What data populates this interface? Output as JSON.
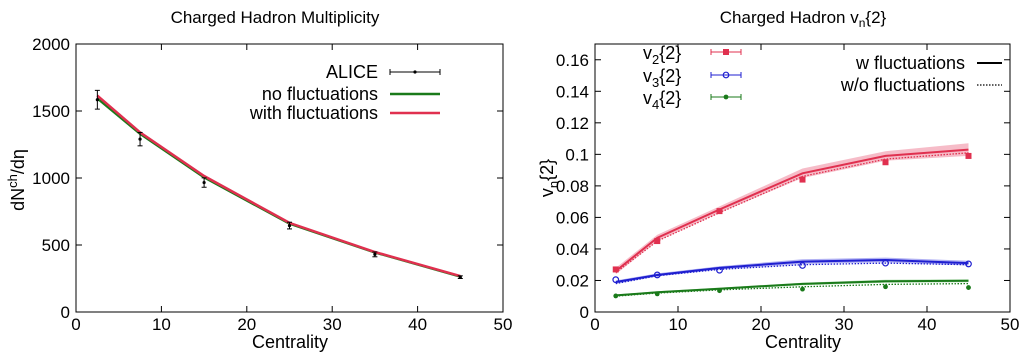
{
  "chart_data": [
    {
      "type": "line",
      "title": "Charged Hadron Multiplicity",
      "xlabel": "Centrality",
      "ylabel_base": "dN",
      "ylabel_sup": "ch",
      "ylabel_tail": "/dη",
      "xlim": [
        0,
        50
      ],
      "ylim": [
        0,
        2000
      ],
      "xticks": [
        0,
        10,
        20,
        30,
        40,
        50
      ],
      "yticks": [
        0,
        500,
        1000,
        1500,
        2000
      ],
      "legend_position": "top-right",
      "grid": false,
      "series": [
        {
          "name": "ALICE",
          "kind": "errorbar",
          "color": "#000000",
          "x": [
            2.5,
            7.5,
            15,
            25,
            35,
            45
          ],
          "y": [
            1584,
            1290,
            966,
            645,
            430,
            260
          ],
          "yerr": [
            70,
            50,
            35,
            25,
            18,
            10
          ]
        },
        {
          "name": "no fluctuations",
          "kind": "line",
          "color": "#1a7a1a",
          "x": [
            2.5,
            7.5,
            15,
            25,
            35,
            45
          ],
          "y": [
            1595,
            1330,
            1005,
            660,
            445,
            265
          ]
        },
        {
          "name": "with fluctuations",
          "kind": "line",
          "color": "#e0304f",
          "x": [
            2.5,
            7.5,
            15,
            25,
            35,
            45
          ],
          "y": [
            1615,
            1340,
            1015,
            665,
            448,
            268
          ]
        }
      ]
    },
    {
      "type": "line",
      "title_base": "Charged Hadron v",
      "title_sub": "n",
      "title_tail": "{2}",
      "xlabel": "Centrality",
      "ylabel_base": "v",
      "ylabel_sub": "n",
      "ylabel_tail": "{2}",
      "xlim": [
        0,
        50
      ],
      "ylim": [
        0,
        0.17
      ],
      "xticks": [
        0,
        10,
        20,
        30,
        40,
        50
      ],
      "yticks": [
        0,
        0.02,
        0.04,
        0.06,
        0.08,
        0.1,
        0.12,
        0.14,
        0.16
      ],
      "grid": false,
      "style_legend": [
        {
          "label": "w fluctuations",
          "dash": "solid"
        },
        {
          "label": "w/o fluctuations",
          "dash": "dotted"
        }
      ],
      "series": [
        {
          "name_base": "v",
          "name_sub": "2",
          "name_tail": "{2}",
          "color": "#e0304f",
          "band": "#f2a0b0",
          "marker": "square",
          "x": [
            2.5,
            7.5,
            15,
            25,
            35,
            45
          ],
          "y": [
            0.027,
            0.045,
            0.064,
            0.084,
            0.095,
            0.099
          ],
          "w_fluct": [
            0.026,
            0.047,
            0.065,
            0.088,
            0.099,
            0.103
          ],
          "wo_fluct": [
            0.025,
            0.045,
            0.063,
            0.086,
            0.097,
            0.101
          ],
          "band_width": [
            0.002,
            0.002,
            0.002,
            0.003,
            0.003,
            0.004
          ]
        },
        {
          "name_base": "v",
          "name_sub": "3",
          "name_tail": "{2}",
          "color": "#1f1fd0",
          "band": "#9090ee",
          "marker": "circle",
          "x": [
            2.5,
            7.5,
            15,
            25,
            35,
            45
          ],
          "y": [
            0.0205,
            0.0235,
            0.0265,
            0.0295,
            0.031,
            0.0305
          ],
          "w_fluct": [
            0.019,
            0.0235,
            0.028,
            0.032,
            0.033,
            0.031
          ],
          "wo_fluct": [
            0.018,
            0.023,
            0.027,
            0.03,
            0.031,
            0.03
          ],
          "band_width": [
            0.001,
            0.001,
            0.001,
            0.0015,
            0.0015,
            0.0015
          ]
        },
        {
          "name_base": "v",
          "name_sub": "4",
          "name_tail": "{2}",
          "color": "#1a7a1a",
          "band": "#8ccf8c",
          "marker": "dot",
          "x": [
            2.5,
            7.5,
            15,
            25,
            35,
            45
          ],
          "y": [
            0.0102,
            0.0115,
            0.0135,
            0.0145,
            0.016,
            0.0155
          ],
          "w_fluct": [
            0.0105,
            0.0125,
            0.0148,
            0.0178,
            0.0195,
            0.0198
          ],
          "wo_fluct": [
            0.01,
            0.012,
            0.014,
            0.016,
            0.0175,
            0.018
          ],
          "band_width": [
            0.0006,
            0.0006,
            0.0007,
            0.0008,
            0.0009,
            0.0009
          ]
        }
      ]
    }
  ]
}
